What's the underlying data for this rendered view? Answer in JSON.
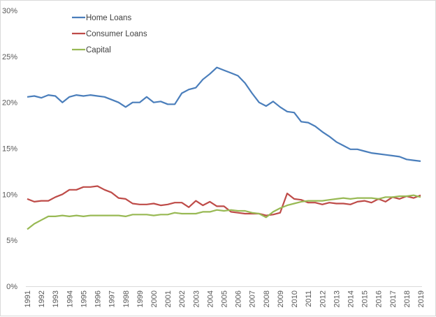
{
  "chart_data": {
    "type": "line",
    "title": "",
    "xlabel": "",
    "ylabel": "",
    "ylim": [
      0,
      30
    ],
    "yticks": [
      "0%",
      "5%",
      "10%",
      "15%",
      "20%",
      "25%",
      "30%"
    ],
    "ytick_values": [
      0,
      5,
      10,
      15,
      20,
      25,
      30
    ],
    "xlim": [
      1991,
      2019
    ],
    "xticks": [
      "1991",
      "1992",
      "1993",
      "1994",
      "1995",
      "1996",
      "1997",
      "1998",
      "1999",
      "2000",
      "2001",
      "2002",
      "2003",
      "2004",
      "2005",
      "2006",
      "2007",
      "2008",
      "2009",
      "2010",
      "2011",
      "2012",
      "2013",
      "2014",
      "2015",
      "2016",
      "2017",
      "2018",
      "2019"
    ],
    "grid": false,
    "legend_position": "top-left",
    "x": [
      1991,
      1991.5,
      1992,
      1992.5,
      1993,
      1993.5,
      1994,
      1994.5,
      1995,
      1995.5,
      1996,
      1996.5,
      1997,
      1997.5,
      1998,
      1998.5,
      1999,
      1999.5,
      2000,
      2000.5,
      2001,
      2001.5,
      2002,
      2002.5,
      2003,
      2003.5,
      2004,
      2004.5,
      2005,
      2005.5,
      2006,
      2006.5,
      2007,
      2007.5,
      2008,
      2008.5,
      2009,
      2009.5,
      2010,
      2010.5,
      2011,
      2011.5,
      2012,
      2012.5,
      2013,
      2013.5,
      2014,
      2014.5,
      2015,
      2015.5,
      2016,
      2016.5,
      2017,
      2017.5,
      2018,
      2018.5,
      2019
    ],
    "series": [
      {
        "name": "Home Loans",
        "color": "#4a7ebb",
        "values": [
          20.6,
          20.7,
          20.5,
          20.8,
          20.7,
          20.0,
          20.6,
          20.8,
          20.7,
          20.8,
          20.7,
          20.6,
          20.3,
          20.0,
          19.5,
          20.0,
          20.0,
          20.6,
          20.0,
          20.1,
          19.8,
          19.8,
          21.0,
          21.4,
          21.6,
          22.5,
          23.1,
          23.8,
          23.5,
          23.2,
          22.9,
          22.1,
          21.0,
          20.0,
          19.6,
          20.1,
          19.5,
          19.0,
          18.9,
          17.9,
          17.8,
          17.4,
          16.8,
          16.3,
          15.7,
          15.3,
          14.9,
          14.9,
          14.7,
          14.5,
          14.4,
          14.3,
          14.2,
          14.1,
          13.8,
          13.7,
          13.6
        ]
      },
      {
        "name": "Consumer Loans",
        "color": "#be4b48",
        "values": [
          9.5,
          9.2,
          9.3,
          9.3,
          9.7,
          10.0,
          10.5,
          10.5,
          10.8,
          10.8,
          10.9,
          10.5,
          10.2,
          9.6,
          9.5,
          9.0,
          8.9,
          8.9,
          9.0,
          8.8,
          8.9,
          9.1,
          9.1,
          8.6,
          9.3,
          8.8,
          9.2,
          8.7,
          8.7,
          8.1,
          8.0,
          7.9,
          7.9,
          7.9,
          7.7,
          7.8,
          8.0,
          10.1,
          9.5,
          9.4,
          9.1,
          9.1,
          8.9,
          9.1,
          9.0,
          9.0,
          8.9,
          9.2,
          9.3,
          9.1,
          9.5,
          9.2,
          9.7,
          9.5,
          9.8,
          9.6,
          9.9
        ]
      },
      {
        "name": "Capital",
        "color": "#98b954",
        "values": [
          6.2,
          6.8,
          7.2,
          7.6,
          7.6,
          7.7,
          7.6,
          7.7,
          7.6,
          7.7,
          7.7,
          7.7,
          7.7,
          7.7,
          7.6,
          7.8,
          7.8,
          7.8,
          7.7,
          7.8,
          7.8,
          8.0,
          7.9,
          7.9,
          7.9,
          8.1,
          8.1,
          8.3,
          8.2,
          8.3,
          8.2,
          8.2,
          8.0,
          7.9,
          7.5,
          8.1,
          8.5,
          8.8,
          9.0,
          9.2,
          9.3,
          9.3,
          9.3,
          9.4,
          9.5,
          9.6,
          9.5,
          9.6,
          9.6,
          9.6,
          9.5,
          9.7,
          9.7,
          9.8,
          9.8,
          9.9,
          9.7
        ]
      }
    ]
  }
}
